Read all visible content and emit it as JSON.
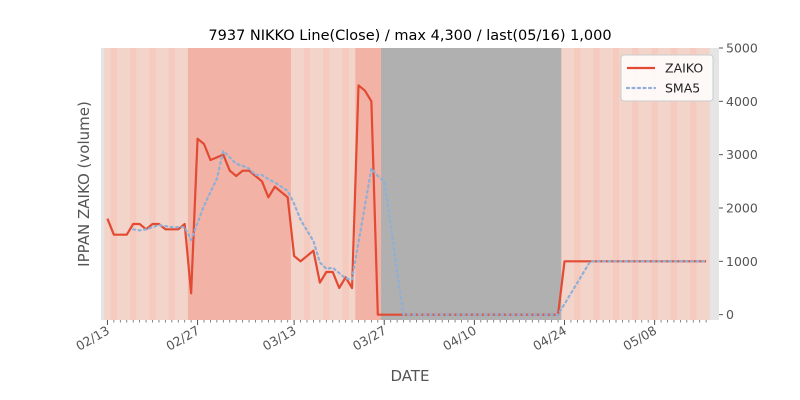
{
  "chart_data": {
    "type": "line",
    "title": "7937 NIKKO Line(Close) / max 4,300 / last(05/16) 1,000",
    "xlabel": "DATE",
    "ylabel": "IPPAN ZAIKO (volume)",
    "y_axis_side": "right",
    "ylim": [
      -100,
      5000
    ],
    "yticks": [
      0,
      1000,
      2000,
      3000,
      4000,
      5000
    ],
    "xlim": [
      "2024-02-12",
      "2024-05-18"
    ],
    "xticks": [
      {
        "date": "2024-02-13",
        "label": "02/13"
      },
      {
        "date": "2024-02-27",
        "label": "02/27"
      },
      {
        "date": "2024-03-13",
        "label": "03/13"
      },
      {
        "date": "2024-03-27",
        "label": "03/27"
      },
      {
        "date": "2024-04-10",
        "label": "04/10"
      },
      {
        "date": "2024-04-24",
        "label": "04/24"
      },
      {
        "date": "2024-05-08",
        "label": "05/08"
      }
    ],
    "legend_position": "top-right",
    "grid": false,
    "series": [
      {
        "name": "ZAIKO",
        "color": "#e24a33",
        "style": "solid",
        "points": [
          [
            "2024-02-13",
            1800
          ],
          [
            "2024-02-14",
            1500
          ],
          [
            "2024-02-15",
            1500
          ],
          [
            "2024-02-16",
            1500
          ],
          [
            "2024-02-17",
            1700
          ],
          [
            "2024-02-18",
            1700
          ],
          [
            "2024-02-19",
            1600
          ],
          [
            "2024-02-20",
            1700
          ],
          [
            "2024-02-21",
            1700
          ],
          [
            "2024-02-22",
            1600
          ],
          [
            "2024-02-23",
            1600
          ],
          [
            "2024-02-24",
            1600
          ],
          [
            "2024-02-25",
            1700
          ],
          [
            "2024-02-26",
            400
          ],
          [
            "2024-02-27",
            3300
          ],
          [
            "2024-02-28",
            3200
          ],
          [
            "2024-02-29",
            2900
          ],
          [
            "2024-03-01",
            2950
          ],
          [
            "2024-03-02",
            3000
          ],
          [
            "2024-03-03",
            2700
          ],
          [
            "2024-03-04",
            2600
          ],
          [
            "2024-03-05",
            2700
          ],
          [
            "2024-03-06",
            2700
          ],
          [
            "2024-03-07",
            2600
          ],
          [
            "2024-03-08",
            2500
          ],
          [
            "2024-03-09",
            2200
          ],
          [
            "2024-03-10",
            2400
          ],
          [
            "2024-03-12",
            2200
          ],
          [
            "2024-03-13",
            1100
          ],
          [
            "2024-03-14",
            1000
          ],
          [
            "2024-03-16",
            1200
          ],
          [
            "2024-03-17",
            600
          ],
          [
            "2024-03-18",
            800
          ],
          [
            "2024-03-19",
            800
          ],
          [
            "2024-03-20",
            500
          ],
          [
            "2024-03-21",
            700
          ],
          [
            "2024-03-22",
            500
          ],
          [
            "2024-03-23",
            4300
          ],
          [
            "2024-03-24",
            4200
          ],
          [
            "2024-03-25",
            4000
          ],
          [
            "2024-03-26",
            0
          ],
          [
            "2024-04-23",
            0
          ],
          [
            "2024-04-24",
            1000
          ],
          [
            "2024-05-16",
            1000
          ]
        ]
      },
      {
        "name": "SMA5",
        "color": "#8eb0d6",
        "style": "dotted",
        "points": [
          [
            "2024-02-17",
            1600
          ],
          [
            "2024-02-18",
            1580
          ],
          [
            "2024-02-19",
            1600
          ],
          [
            "2024-02-20",
            1640
          ],
          [
            "2024-02-21",
            1680
          ],
          [
            "2024-02-22",
            1660
          ],
          [
            "2024-02-23",
            1640
          ],
          [
            "2024-02-24",
            1640
          ],
          [
            "2024-02-25",
            1640
          ],
          [
            "2024-02-26",
            1400
          ],
          [
            "2024-02-27",
            1720
          ],
          [
            "2024-02-28",
            2040
          ],
          [
            "2024-02-29",
            2300
          ],
          [
            "2024-03-01",
            2550
          ],
          [
            "2024-03-02",
            3070
          ],
          [
            "2024-03-03",
            2950
          ],
          [
            "2024-03-04",
            2830
          ],
          [
            "2024-03-05",
            2790
          ],
          [
            "2024-03-06",
            2740
          ],
          [
            "2024-03-07",
            2620
          ],
          [
            "2024-03-08",
            2620
          ],
          [
            "2024-03-09",
            2540
          ],
          [
            "2024-03-10",
            2480
          ],
          [
            "2024-03-12",
            2320
          ],
          [
            "2024-03-13",
            2080
          ],
          [
            "2024-03-14",
            1780
          ],
          [
            "2024-03-16",
            1380
          ],
          [
            "2024-03-17",
            980
          ],
          [
            "2024-03-18",
            860
          ],
          [
            "2024-03-19",
            880
          ],
          [
            "2024-03-20",
            780
          ],
          [
            "2024-03-21",
            680
          ],
          [
            "2024-03-22",
            660
          ],
          [
            "2024-03-23",
            1360
          ],
          [
            "2024-03-24",
            2040
          ],
          [
            "2024-03-25",
            2740
          ],
          [
            "2024-03-26",
            2600
          ],
          [
            "2024-03-27",
            2500
          ],
          [
            "2024-03-28",
            1700
          ],
          [
            "2024-03-29",
            800
          ],
          [
            "2024-03-30",
            0
          ],
          [
            "2024-04-23",
            0
          ],
          [
            "2024-04-24",
            200
          ],
          [
            "2024-04-25",
            400
          ],
          [
            "2024-04-26",
            600
          ],
          [
            "2024-04-27",
            800
          ],
          [
            "2024-04-28",
            1000
          ],
          [
            "2024-05-16",
            1000
          ]
        ]
      }
    ]
  }
}
